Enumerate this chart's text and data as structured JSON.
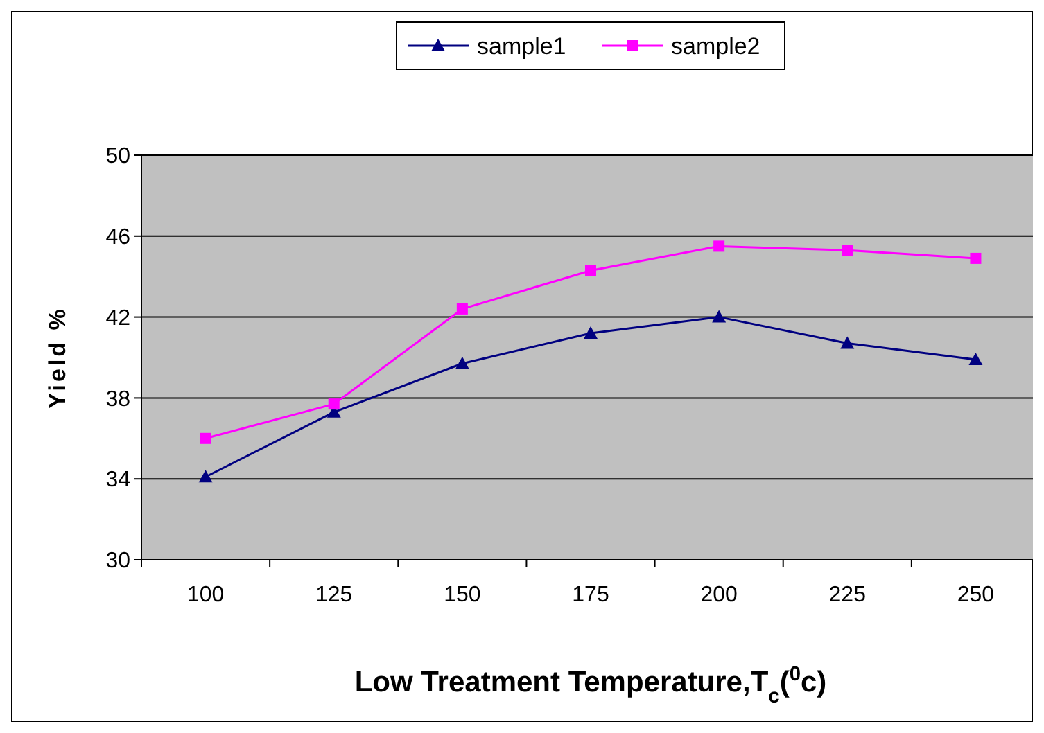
{
  "chart_data": {
    "type": "line",
    "xlabel": "Low Treatment Temperature,T$_{c}$($^{0}$c)",
    "ylabel": "Yield %",
    "categories": [
      "100",
      "125",
      "150",
      "175",
      "200",
      "225",
      "250"
    ],
    "series": [
      {
        "name": "sample1",
        "color": "#000080",
        "marker": "triangle",
        "values": [
          34.1,
          37.3,
          39.7,
          41.2,
          42.0,
          40.7,
          39.9
        ]
      },
      {
        "name": "sample2",
        "color": "#ff00ff",
        "marker": "square",
        "values": [
          36.0,
          37.7,
          42.4,
          44.3,
          45.5,
          45.3,
          44.9
        ]
      }
    ],
    "ylim": [
      30,
      50
    ],
    "yticks": [
      30,
      34,
      38,
      42,
      46,
      50
    ],
    "grid": "y",
    "legend": "top",
    "line_style": "solid"
  }
}
